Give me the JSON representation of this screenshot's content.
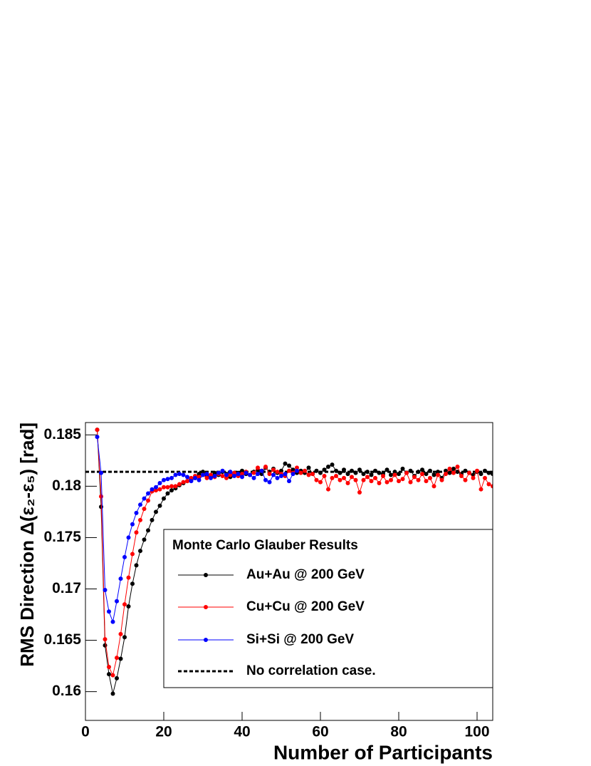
{
  "chart_data": {
    "type": "line",
    "x_label": "Number of Participants",
    "y_label": "RMS Direction Δ(ε₂-ε₅) [rad]",
    "legend_title": "Monte Carlo Glauber Results",
    "xlim": [
      0,
      104
    ],
    "ylim": [
      0.1572,
      0.1862
    ],
    "xticks": [
      0,
      20,
      40,
      60,
      80,
      100
    ],
    "yticks": [
      0.16,
      0.165,
      0.17,
      0.175,
      0.18,
      0.185
    ],
    "x": [
      3,
      4,
      5,
      6,
      7,
      8,
      9,
      10,
      11,
      12,
      13,
      14,
      15,
      16,
      17,
      18,
      19,
      20,
      21,
      22,
      23,
      24,
      25,
      26,
      27,
      28,
      29,
      30,
      31,
      32,
      33,
      34,
      35,
      36,
      37,
      38,
      39,
      40,
      41,
      42,
      43,
      44,
      45,
      46,
      47,
      48,
      49,
      50,
      51,
      52,
      53,
      54,
      55,
      56,
      57,
      58,
      59,
      60,
      61,
      62,
      63,
      64,
      65,
      66,
      67,
      68,
      69,
      70,
      71,
      72,
      73,
      74,
      75,
      76,
      77,
      78,
      79,
      80,
      81,
      82,
      83,
      84,
      85,
      86,
      87,
      88,
      89,
      90,
      91,
      92,
      93,
      94,
      95,
      96,
      97,
      98,
      99,
      100,
      101,
      102,
      103,
      104
    ],
    "series": [
      {
        "name": "Au+Au @ 200 GeV",
        "color": "#000000",
        "values": [
          0.1855,
          0.178,
          0.1645,
          0.1617,
          0.1598,
          0.1613,
          0.1632,
          0.1653,
          0.1683,
          0.1705,
          0.1723,
          0.1737,
          0.1748,
          0.1757,
          0.1767,
          0.1775,
          0.1781,
          0.1788,
          0.1793,
          0.1796,
          0.1798,
          0.1801,
          0.1803,
          0.1805,
          0.1806,
          0.1808,
          0.1812,
          0.1814,
          0.1811,
          0.1809,
          0.1813,
          0.1811,
          0.1814,
          0.1812,
          0.1809,
          0.1811,
          0.1813,
          0.1815,
          0.1812,
          0.1811,
          0.1814,
          0.1816,
          0.1812,
          0.1818,
          0.1814,
          0.1817,
          0.1813,
          0.1815,
          0.1822,
          0.182,
          0.1816,
          0.1813,
          0.1815,
          0.1813,
          0.1818,
          0.1812,
          0.1815,
          0.1813,
          0.1816,
          0.1819,
          0.1821,
          0.1815,
          0.1813,
          0.1816,
          0.1812,
          0.1815,
          0.1813,
          0.1816,
          0.1812,
          0.1814,
          0.1811,
          0.1815,
          0.1813,
          0.1812,
          0.1816,
          0.1811,
          0.1814,
          0.1812,
          0.1817,
          0.1813,
          0.1815,
          0.181,
          0.1814,
          0.1816,
          0.1812,
          0.1815,
          0.1811,
          0.1814,
          0.1808,
          0.1815,
          0.1813,
          0.1817,
          0.1814,
          0.1812,
          0.1815,
          0.1813,
          0.1811,
          0.1814,
          0.1812,
          0.1815,
          0.1813,
          0.1812
        ]
      },
      {
        "name": "Cu+Cu @ 200 GeV",
        "color": "#ff0000",
        "values": [
          0.1855,
          0.179,
          0.1651,
          0.1624,
          0.1616,
          0.1633,
          0.1656,
          0.1685,
          0.1711,
          0.1734,
          0.1755,
          0.1767,
          0.1778,
          0.1786,
          0.1795,
          0.1796,
          0.1797,
          0.1799,
          0.1799,
          0.18,
          0.18,
          0.1802,
          0.1804,
          0.1805,
          0.1808,
          0.181,
          0.1809,
          0.1811,
          0.1808,
          0.1811,
          0.1809,
          0.1812,
          0.181,
          0.1808,
          0.1811,
          0.1813,
          0.181,
          0.1812,
          0.1814,
          0.1811,
          0.1813,
          0.1818,
          0.1815,
          0.1819,
          0.1812,
          0.1816,
          0.1814,
          0.1812,
          0.181,
          0.1815,
          0.1813,
          0.1818,
          0.1813,
          0.1815,
          0.1811,
          0.1812,
          0.1806,
          0.1804,
          0.181,
          0.1797,
          0.1808,
          0.181,
          0.1806,
          0.1808,
          0.1803,
          0.1809,
          0.1806,
          0.1794,
          0.1806,
          0.1809,
          0.1805,
          0.1808,
          0.1803,
          0.181,
          0.1804,
          0.1806,
          0.1811,
          0.1805,
          0.1807,
          0.1813,
          0.1804,
          0.1809,
          0.1806,
          0.1812,
          0.1805,
          0.1808,
          0.18,
          0.1811,
          0.1806,
          0.1812,
          0.1817,
          0.1813,
          0.1819,
          0.181,
          0.1806,
          0.1813,
          0.1808,
          0.1815,
          0.1797,
          0.1808,
          0.1802,
          0.18
        ]
      },
      {
        "name": "Si+Si @ 200 GeV",
        "color": "#0000ff",
        "values": [
          0.1848,
          0.1813,
          0.1699,
          0.1678,
          0.1668,
          0.1688,
          0.171,
          0.1731,
          0.175,
          0.1763,
          0.1774,
          0.1782,
          0.1788,
          0.1793,
          0.1797,
          0.1799,
          0.1803,
          0.1806,
          0.1807,
          0.1808,
          0.1811,
          0.1812,
          0.1811,
          0.1809,
          0.1805,
          0.1808,
          0.1806,
          0.1811,
          0.1812,
          0.1808,
          0.181,
          0.1813,
          0.1815,
          0.1811,
          0.1814,
          0.181,
          0.1812,
          0.1809,
          0.1813,
          0.1811,
          0.1808,
          0.1812,
          0.1815,
          0.1806,
          0.1804,
          0.1811,
          0.1808,
          0.181,
          0.1812,
          0.1805,
          0.1812,
          0.1815,
          null,
          null,
          null,
          null,
          null,
          null,
          null,
          null,
          null,
          null,
          null,
          null,
          null,
          null,
          null,
          null,
          null,
          null,
          null,
          null,
          null,
          null,
          null,
          null,
          null,
          null,
          null,
          null,
          null,
          null,
          null,
          null,
          null,
          null,
          null,
          null,
          null,
          null,
          null,
          null,
          null,
          null,
          null,
          null,
          null,
          null,
          null,
          null,
          null,
          null
        ]
      }
    ],
    "reference_line": {
      "name": "No correlation case.",
      "value": 0.1814,
      "color": "#000000"
    }
  }
}
